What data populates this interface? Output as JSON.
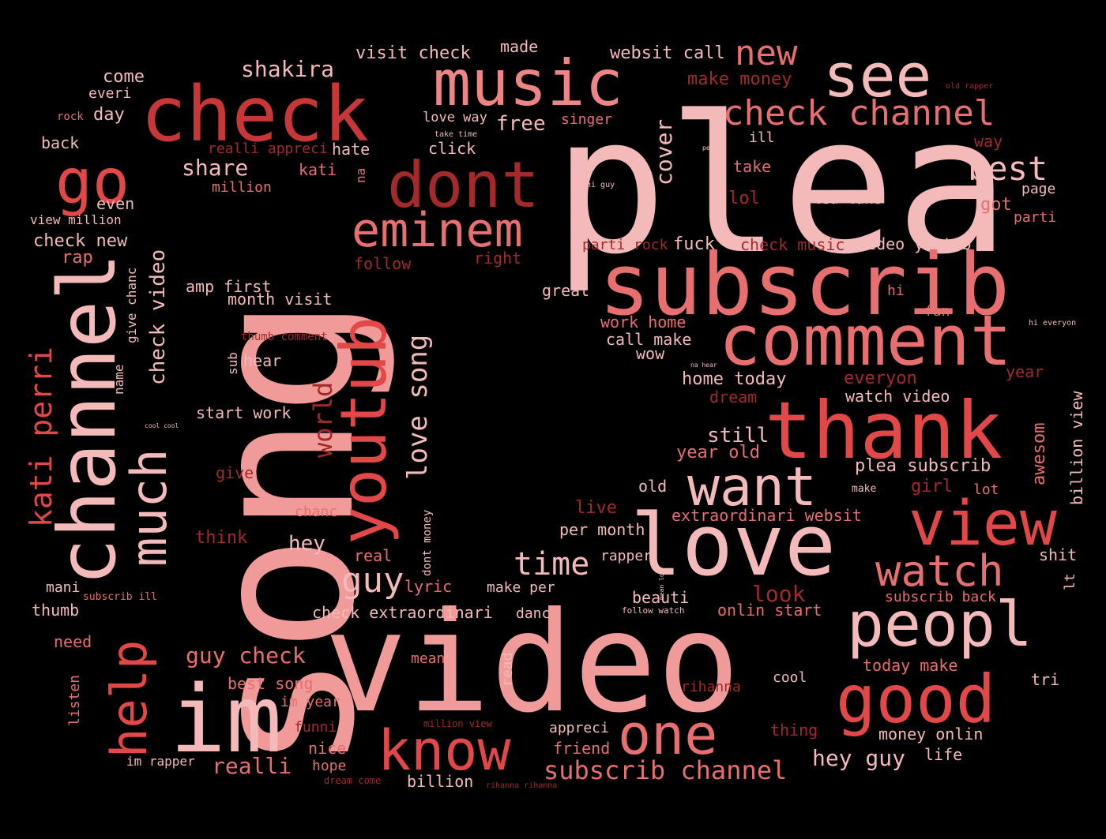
{
  "background_color": "#000000",
  "palette": {
    "pale": "#f4b9b9",
    "pink": "#f19a9a",
    "salmon": "#ee8585",
    "coral": "#e86f6f",
    "red": "#e24848",
    "deep": "#c83737",
    "dark": "#a12a2a",
    "darker": "#7a1f1f"
  },
  "words": [
    {
      "text": "plea"
    },
    {
      "text": "song"
    },
    {
      "text": "video"
    },
    {
      "text": "subscrib"
    },
    {
      "text": "check"
    },
    {
      "text": "music"
    },
    {
      "text": "love"
    },
    {
      "text": "channel"
    },
    {
      "text": "comment"
    },
    {
      "text": "thank"
    },
    {
      "text": "dont"
    },
    {
      "text": "im"
    },
    {
      "text": "youtub"
    },
    {
      "text": "view"
    },
    {
      "text": "go"
    },
    {
      "text": "see"
    },
    {
      "text": "peopl"
    },
    {
      "text": "good"
    },
    {
      "text": "know"
    },
    {
      "text": "want"
    },
    {
      "text": "help"
    },
    {
      "text": "much"
    },
    {
      "text": "eminem"
    },
    {
      "text": "watch"
    },
    {
      "text": "one"
    },
    {
      "text": "check channel"
    },
    {
      "text": "new"
    },
    {
      "text": "best"
    },
    {
      "text": "time"
    },
    {
      "text": "guy"
    },
    {
      "text": "subscrib channel"
    },
    {
      "text": "kati perri"
    },
    {
      "text": "love song"
    },
    {
      "text": "world"
    },
    {
      "text": "check video"
    },
    {
      "text": "shakira"
    },
    {
      "text": "share"
    },
    {
      "text": "realli"
    },
    {
      "text": "hey guy"
    },
    {
      "text": "guy check"
    },
    {
      "text": "look"
    },
    {
      "text": "hey"
    },
    {
      "text": "visit check"
    },
    {
      "text": "websit call"
    },
    {
      "text": "made"
    },
    {
      "text": "make money"
    },
    {
      "text": "come"
    },
    {
      "text": "everi"
    },
    {
      "text": "rock"
    },
    {
      "text": "day"
    },
    {
      "text": "back"
    },
    {
      "text": "love way"
    },
    {
      "text": "take time"
    },
    {
      "text": "free"
    },
    {
      "text": "singer"
    },
    {
      "text": "realli appreci"
    },
    {
      "text": "hate"
    },
    {
      "text": "click"
    },
    {
      "text": "cover"
    },
    {
      "text": "kati"
    },
    {
      "text": "na"
    },
    {
      "text": "million"
    },
    {
      "text": "even"
    },
    {
      "text": "view million"
    },
    {
      "text": "check new"
    },
    {
      "text": "rap"
    },
    {
      "text": "follow"
    },
    {
      "text": "right"
    },
    {
      "text": "amp first"
    },
    {
      "text": "month visit"
    },
    {
      "text": "give chanc"
    },
    {
      "text": "thumb comment"
    },
    {
      "text": "hear"
    },
    {
      "text": "sub"
    },
    {
      "text": "name"
    },
    {
      "text": "start work"
    },
    {
      "text": "still"
    },
    {
      "text": "give"
    },
    {
      "text": "chanc"
    },
    {
      "text": "think"
    },
    {
      "text": "real"
    },
    {
      "text": "dont money"
    },
    {
      "text": "lyric"
    },
    {
      "text": "make per"
    },
    {
      "text": "mani"
    },
    {
      "text": "subscrib ill"
    },
    {
      "text": "thumb"
    },
    {
      "text": "check extraordinari"
    },
    {
      "text": "danc"
    },
    {
      "text": "need"
    },
    {
      "text": "best song"
    },
    {
      "text": "im year"
    },
    {
      "text": "listen"
    },
    {
      "text": "funni"
    },
    {
      "text": "nice"
    },
    {
      "text": "hope"
    },
    {
      "text": "im rapper"
    },
    {
      "text": "dream come"
    },
    {
      "text": "billion"
    },
    {
      "text": "rihanna rihanna"
    },
    {
      "text": "mean"
    },
    {
      "text": "read"
    },
    {
      "text": "million view"
    },
    {
      "text": "appreci"
    },
    {
      "text": "friend"
    },
    {
      "text": "thing"
    },
    {
      "text": "money onlin"
    },
    {
      "text": "life"
    },
    {
      "text": "rihanna"
    },
    {
      "text": "cool"
    },
    {
      "text": "today make"
    },
    {
      "text": "tri"
    },
    {
      "text": "subscrib back"
    },
    {
      "text": "lt"
    },
    {
      "text": "onlin start"
    },
    {
      "text": "follow watch"
    },
    {
      "text": "mean lot"
    },
    {
      "text": "beauti"
    },
    {
      "text": "rapper"
    },
    {
      "text": "per month"
    },
    {
      "text": "live"
    },
    {
      "text": "extraordinari websit"
    },
    {
      "text": "old"
    },
    {
      "text": "make"
    },
    {
      "text": "girl"
    },
    {
      "text": "lot"
    },
    {
      "text": "plea subscrib"
    },
    {
      "text": "year old"
    },
    {
      "text": "awesom"
    },
    {
      "text": "billion view"
    },
    {
      "text": "shit"
    },
    {
      "text": "dream"
    },
    {
      "text": "watch video"
    },
    {
      "text": "home today"
    },
    {
      "text": "everyon"
    },
    {
      "text": "year"
    },
    {
      "text": "na hear"
    },
    {
      "text": "wow"
    },
    {
      "text": "call make"
    },
    {
      "text": "work home"
    },
    {
      "text": "great"
    },
    {
      "text": "hi"
    },
    {
      "text": "hi everyon"
    },
    {
      "text": "fan"
    },
    {
      "text": "fuck"
    },
    {
      "text": "check music"
    },
    {
      "text": "video youtub"
    },
    {
      "text": "parti rock"
    },
    {
      "text": "parti"
    },
    {
      "text": "lol"
    },
    {
      "text": "plea take"
    },
    {
      "text": "got"
    },
    {
      "text": "page"
    },
    {
      "text": "take"
    },
    {
      "text": "hi guy"
    },
    {
      "text": "perri"
    },
    {
      "text": "ill"
    },
    {
      "text": "way"
    },
    {
      "text": "old rapper"
    },
    {
      "text": "cool cool"
    }
  ]
}
